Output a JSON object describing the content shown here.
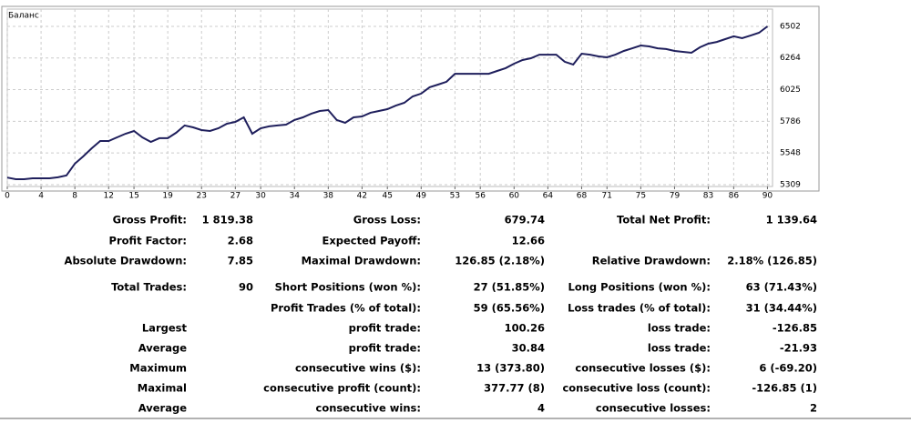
{
  "chart_data": {
    "type": "line",
    "title": "Баланс",
    "x": [
      0,
      1,
      2,
      3,
      4,
      5,
      6,
      7,
      8,
      9,
      10,
      11,
      12,
      13,
      14,
      15,
      16,
      17,
      18,
      19,
      20,
      21,
      22,
      23,
      24,
      25,
      26,
      27,
      28,
      29,
      30,
      31,
      32,
      33,
      34,
      35,
      36,
      37,
      38,
      39,
      40,
      41,
      42,
      43,
      44,
      45,
      46,
      47,
      48,
      49,
      50,
      51,
      52,
      53,
      54,
      55,
      56,
      57,
      58,
      59,
      60,
      61,
      62,
      63,
      64,
      65,
      66,
      67,
      68,
      69,
      70,
      71,
      72,
      73,
      74,
      75,
      76,
      77,
      78,
      79,
      80,
      81,
      82,
      83,
      84,
      85,
      86,
      87,
      88,
      89,
      90
    ],
    "series": [
      {
        "name": "Баланс",
        "color": "#1f1f5c",
        "values": [
          5362,
          5350,
          5350,
          5357,
          5357,
          5357,
          5364,
          5378,
          5467,
          5522,
          5583,
          5638,
          5638,
          5665,
          5693,
          5713,
          5665,
          5631,
          5659,
          5659,
          5700,
          5755,
          5741,
          5720,
          5713,
          5734,
          5768,
          5782,
          5816,
          5693,
          5734,
          5748,
          5755,
          5761,
          5796,
          5816,
          5844,
          5864,
          5871,
          5796,
          5775,
          5816,
          5823,
          5851,
          5864,
          5878,
          5905,
          5926,
          5974,
          5995,
          6043,
          6063,
          6084,
          6145,
          6145,
          6145,
          6145,
          6145,
          6166,
          6187,
          6221,
          6248,
          6262,
          6289,
          6289,
          6289,
          6235,
          6214,
          6296,
          6289,
          6276,
          6269,
          6289,
          6317,
          6337,
          6358,
          6351,
          6337,
          6331,
          6317,
          6310,
          6303,
          6344,
          6372,
          6385,
          6406,
          6427,
          6413,
          6433,
          6454,
          6502
        ]
      }
    ],
    "xlim": [
      0,
      90.6
    ],
    "xticks": [
      0,
      4,
      8,
      12,
      15,
      19,
      23,
      27,
      30,
      34,
      38,
      42,
      45,
      49,
      53,
      56,
      60,
      64,
      68,
      71,
      75,
      79,
      83,
      86,
      90
    ],
    "ylim": [
      5295,
      6646
    ],
    "yticks": [
      5309,
      5548,
      5786,
      6025,
      6264,
      6502
    ],
    "grid": true
  },
  "table": {
    "rows": [
      [
        "Gross Profit:",
        "1 819.38",
        "Gross Loss:",
        "679.74",
        "Total Net Profit:",
        "1 139.64"
      ],
      [
        "Profit Factor:",
        "2.68",
        "Expected Payoff:",
        "12.66",
        null,
        null
      ],
      [
        "Absolute Drawdown:",
        "7.85",
        "Maximal Drawdown:",
        "126.85 (2.18%)",
        "Relative Drawdown:",
        "2.18% (126.85)"
      ],
      [
        "Total Trades:",
        "90",
        "Short Positions (won %):",
        "27 (51.85%)",
        "Long Positions (won %):",
        "63 (71.43%)"
      ],
      [
        null,
        null,
        "Profit Trades (% of total):",
        "59 (65.56%)",
        "Loss trades (% of total):",
        "31 (34.44%)"
      ],
      [
        "Largest",
        null,
        "profit trade:",
        "100.26",
        "loss trade:",
        "-126.85"
      ],
      [
        "Average",
        null,
        "profit trade:",
        "30.84",
        "loss trade:",
        "-21.93"
      ],
      [
        "Maximum",
        null,
        "consecutive wins ($):",
        "13 (373.80)",
        "consecutive losses ($):",
        "6 (-69.20)"
      ],
      [
        "Maximal",
        null,
        "consecutive profit (count):",
        "377.77 (8)",
        "consecutive loss (count):",
        "-126.85 (1)"
      ],
      [
        "Average",
        null,
        "consecutive wins:",
        "4",
        "consecutive losses:",
        "2"
      ]
    ]
  }
}
